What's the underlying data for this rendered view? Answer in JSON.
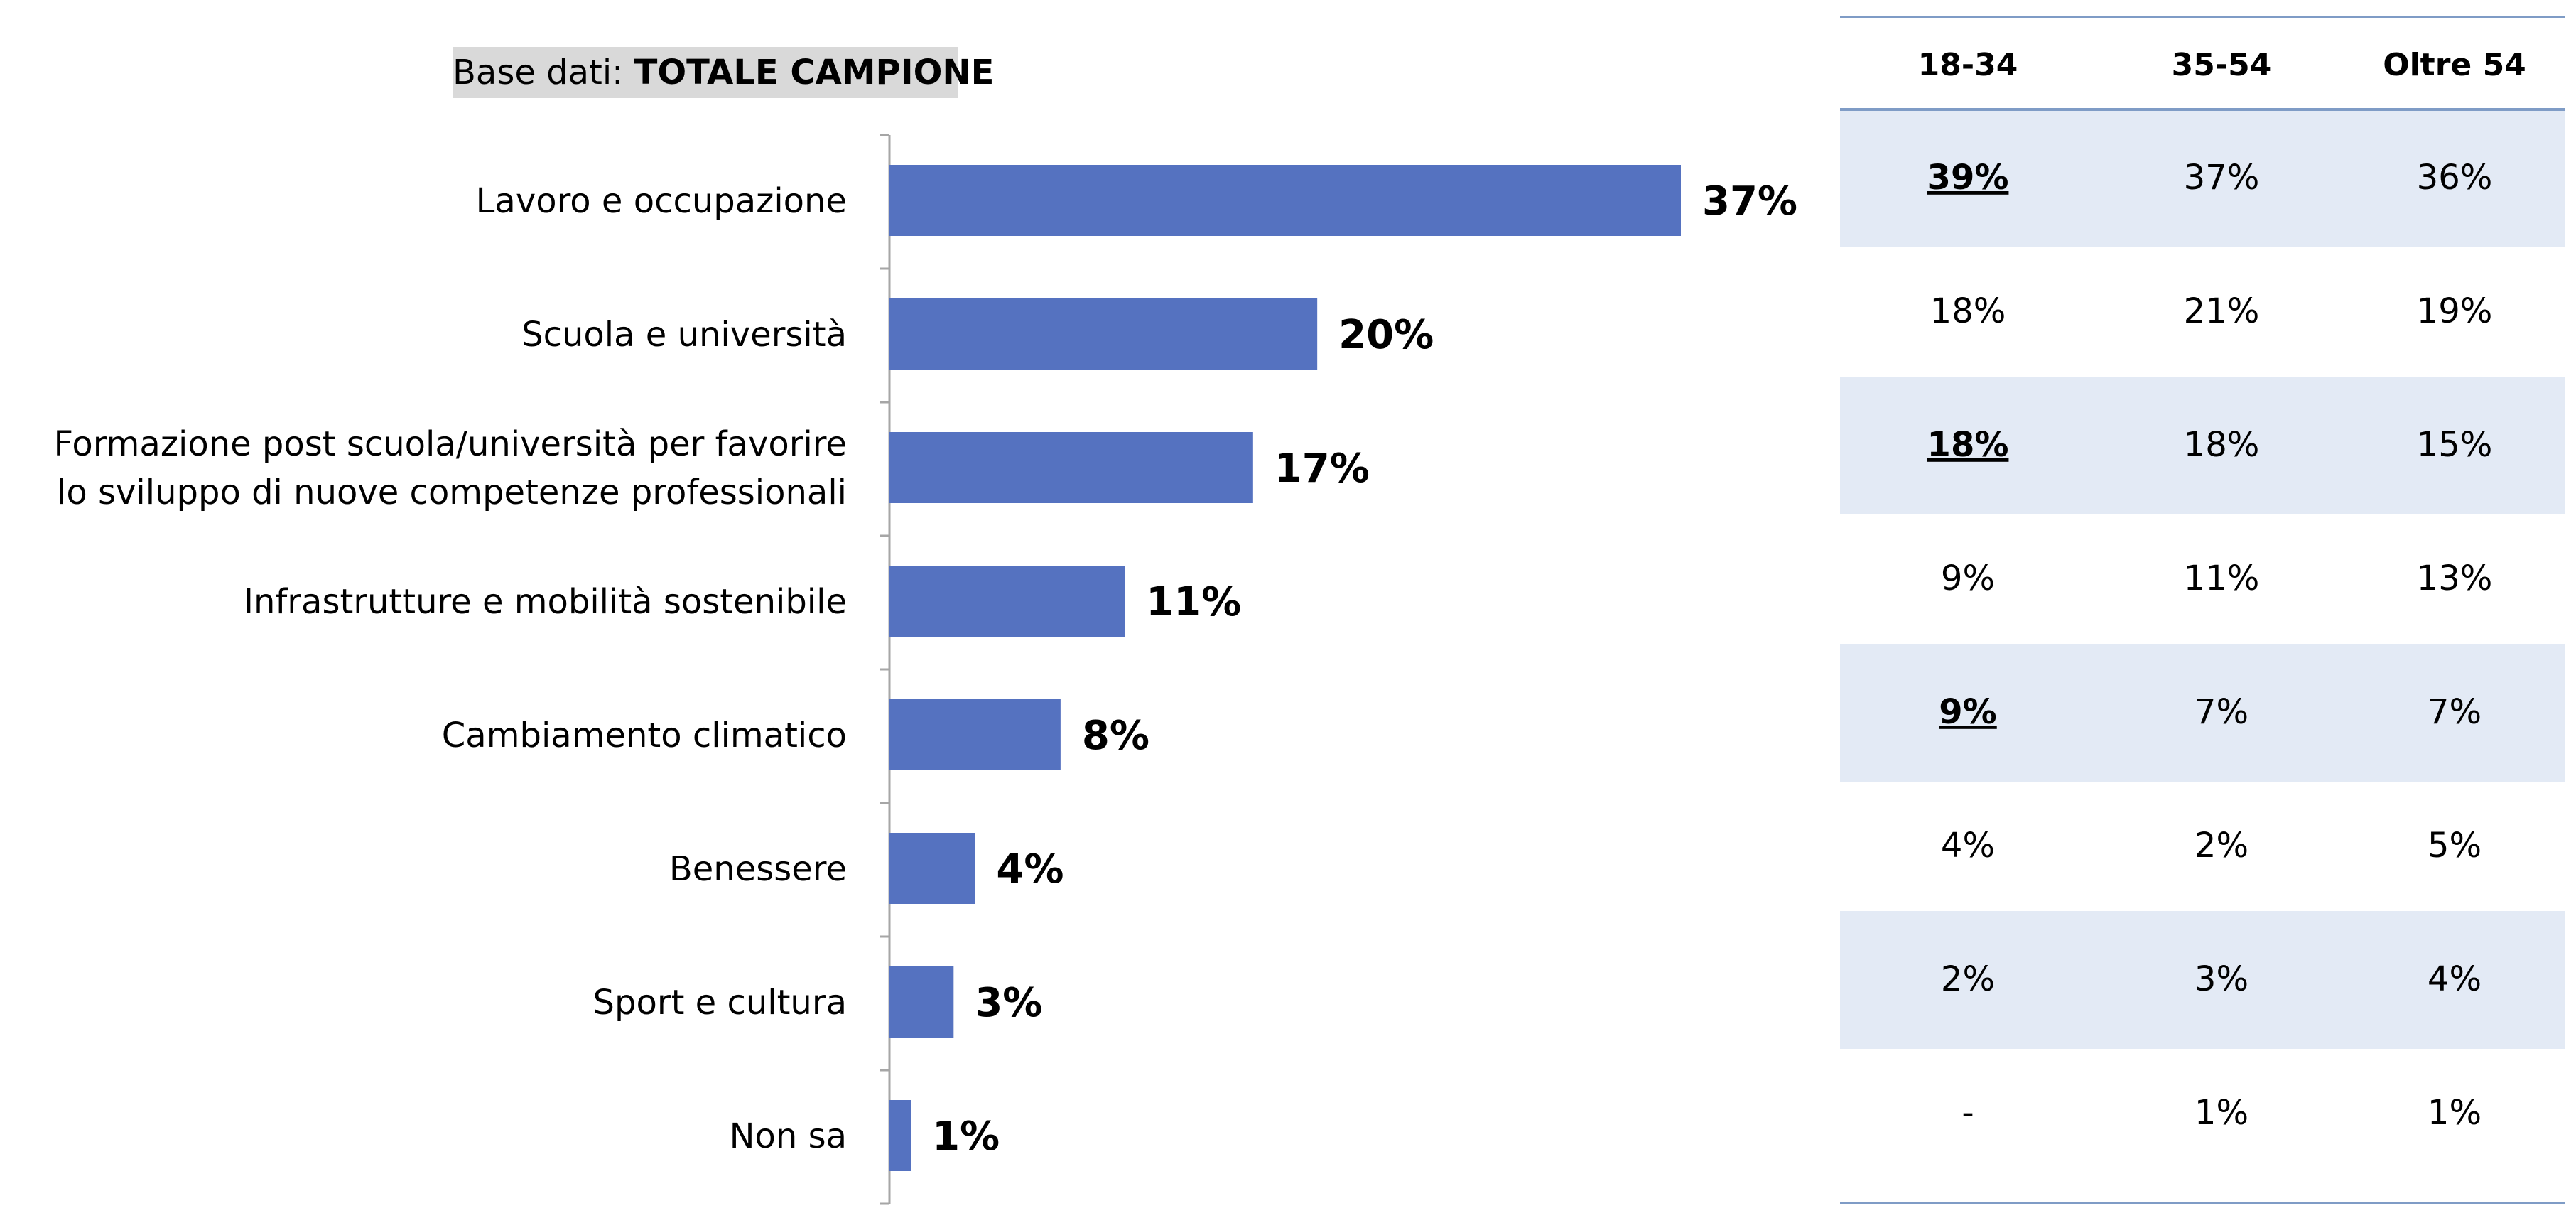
{
  "header": {
    "base_prefix": "Base dati: ",
    "base_value": "TOTALE CAMPIONE"
  },
  "colors": {
    "bar": "#5572C0",
    "band": "#E3EAF5",
    "table_rule": "#7F9CC6",
    "axis": "#A6A6A6"
  },
  "chart_data": {
    "type": "bar",
    "orientation": "horizontal",
    "categories": [
      [
        "Lavoro e occupazione"
      ],
      [
        "Scuola e università"
      ],
      [
        "Formazione post scuola/università per favorire",
        "lo sviluppo di nuove competenze professionali"
      ],
      [
        "Infrastrutture e mobilità sostenibile"
      ],
      [
        "Cambiamento climatico"
      ],
      [
        "Benessere"
      ],
      [
        "Sport e cultura"
      ],
      [
        "Non sa"
      ]
    ],
    "values": [
      37,
      20,
      17,
      11,
      8,
      4,
      3,
      1
    ],
    "value_labels": [
      "37%",
      "20%",
      "17%",
      "11%",
      "8%",
      "4%",
      "3%",
      "1%"
    ],
    "xlim": [
      0,
      40
    ]
  },
  "table": {
    "headers": [
      "18-34",
      "35-54",
      "Oltre 54"
    ],
    "rows": [
      [
        {
          "v": "39%",
          "em": true
        },
        {
          "v": "37%"
        },
        {
          "v": "36%"
        }
      ],
      [
        {
          "v": "18%"
        },
        {
          "v": "21%"
        },
        {
          "v": "19%"
        }
      ],
      [
        {
          "v": "18%",
          "em": true
        },
        {
          "v": "18%"
        },
        {
          "v": "15%"
        }
      ],
      [
        {
          "v": "9%"
        },
        {
          "v": "11%"
        },
        {
          "v": "13%"
        }
      ],
      [
        {
          "v": "9%",
          "em": true
        },
        {
          "v": "7%"
        },
        {
          "v": "7%"
        }
      ],
      [
        {
          "v": "4%"
        },
        {
          "v": "2%"
        },
        {
          "v": "5%"
        }
      ],
      [
        {
          "v": "2%"
        },
        {
          "v": "3%"
        },
        {
          "v": "4%"
        }
      ],
      [
        {
          "v": "-"
        },
        {
          "v": "1%"
        },
        {
          "v": "1%"
        }
      ]
    ]
  }
}
